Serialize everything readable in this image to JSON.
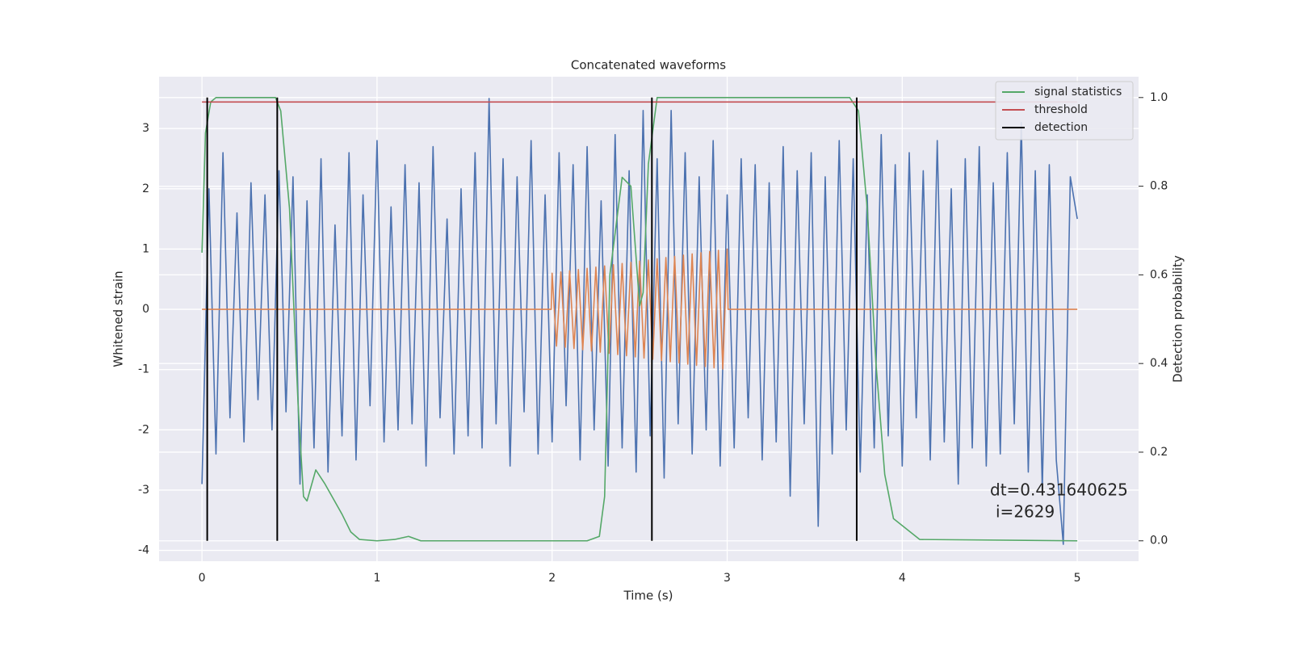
{
  "chart_data": {
    "type": "line",
    "title": "Concatenated waveforms",
    "xlabel": "Time (s)",
    "ylabel": "Whitened strain",
    "y2label": "Detection probability",
    "xlim": [
      -0.245,
      5.35
    ],
    "xticks": [
      0,
      1,
      2,
      3,
      4,
      5
    ],
    "ylim": [
      -4.18,
      3.86
    ],
    "yticks": [
      -4,
      -3,
      -2,
      -1,
      0,
      1,
      2,
      3
    ],
    "y2lim": [
      -0.046,
      1.047
    ],
    "y2ticks": [
      {
        "value": 0,
        "label": "0.0"
      },
      0.2,
      0.4,
      0.6,
      0.8,
      {
        "value": 1,
        "label": "1.0"
      }
    ],
    "grid": true,
    "legend": "upper right",
    "annotation": [
      "dt=0.431640625",
      "i=2629"
    ],
    "series": [
      {
        "color": "#4c72b0",
        "x": [
          0,
          0.04,
          0.08,
          0.12,
          0.16,
          0.2,
          0.24,
          0.28,
          0.32,
          0.36,
          0.4,
          0.44,
          0.48,
          0.52,
          0.56,
          0.6,
          0.64,
          0.68,
          0.72,
          0.76,
          0.8,
          0.84,
          0.88,
          0.92,
          0.96,
          1,
          1.04,
          1.08,
          1.12,
          1.16,
          1.2,
          1.24,
          1.28,
          1.32,
          1.36,
          1.4,
          1.44,
          1.48,
          1.52,
          1.56,
          1.6,
          1.64,
          1.68,
          1.72,
          1.76,
          1.8,
          1.84,
          1.88,
          1.92,
          1.96,
          2,
          2.04,
          2.08,
          2.12,
          2.16,
          2.2,
          2.24,
          2.28,
          2.32,
          2.36,
          2.4,
          2.44,
          2.48,
          2.52,
          2.56,
          2.6,
          2.64,
          2.68,
          2.72,
          2.76,
          2.8,
          2.84,
          2.88,
          2.92,
          2.96,
          3,
          3.04,
          3.08,
          3.12,
          3.16,
          3.2,
          3.24,
          3.28,
          3.32,
          3.36,
          3.4,
          3.44,
          3.48,
          3.52,
          3.56,
          3.6,
          3.64,
          3.68,
          3.72,
          3.76,
          3.8,
          3.84,
          3.88,
          3.92,
          3.96,
          4,
          4.04,
          4.08,
          4.12,
          4.16,
          4.2,
          4.24,
          4.28,
          4.32,
          4.36,
          4.4,
          4.44,
          4.48,
          4.52,
          4.56,
          4.6,
          4.64,
          4.68,
          4.72,
          4.76,
          4.8,
          4.84,
          4.88,
          4.92,
          4.96,
          5
        ],
        "values": [
          -2.9,
          2.0,
          -2.4,
          2.6,
          -1.8,
          1.6,
          -2.2,
          2.1,
          -1.5,
          1.9,
          -2.0,
          2.3,
          -1.7,
          2.2,
          -2.9,
          1.8,
          -2.3,
          2.5,
          -2.7,
          1.4,
          -2.1,
          2.6,
          -2.5,
          1.9,
          -1.6,
          2.8,
          -2.2,
          1.7,
          -2.0,
          2.4,
          -1.9,
          2.1,
          -2.6,
          2.7,
          -1.8,
          1.5,
          -2.4,
          2.0,
          -2.1,
          2.6,
          -2.3,
          3.5,
          -1.9,
          2.5,
          -2.6,
          2.2,
          -1.7,
          2.8,
          -2.4,
          1.9,
          -2.2,
          2.6,
          -1.6,
          2.4,
          -2.5,
          2.7,
          -2.0,
          1.8,
          -2.6,
          2.9,
          -2.3,
          2.3,
          -2.7,
          3.3,
          -2.1,
          2.5,
          -2.8,
          3.3,
          -1.9,
          2.6,
          -2.4,
          2.2,
          -2.0,
          2.8,
          -2.6,
          1.9,
          -2.3,
          2.5,
          -1.8,
          2.4,
          -2.5,
          2.1,
          -2.2,
          2.7,
          -3.1,
          2.3,
          -1.9,
          2.6,
          -3.6,
          2.2,
          -2.4,
          2.8,
          -2.0,
          2.5,
          -2.7,
          1.9,
          -2.3,
          2.9,
          -2.1,
          2.4,
          -2.6,
          2.6,
          -1.8,
          2.3,
          -2.5,
          2.8,
          -2.2,
          2.0,
          -2.9,
          2.5,
          -2.3,
          2.7,
          -2.6,
          2.1,
          -2.4,
          2.6,
          -1.9,
          3.1,
          -2.7,
          2.3,
          -3.0,
          2.4,
          -2.5,
          -3.9,
          2.2,
          1.5
        ]
      },
      {
        "color": "#dd8452",
        "x": [
          0,
          1.995,
          2,
          2.025,
          2.05,
          2.075,
          2.1,
          2.125,
          2.15,
          2.175,
          2.2,
          2.225,
          2.25,
          2.275,
          2.3,
          2.325,
          2.35,
          2.375,
          2.4,
          2.425,
          2.45,
          2.475,
          2.5,
          2.525,
          2.55,
          2.575,
          2.6,
          2.625,
          2.65,
          2.675,
          2.7,
          2.725,
          2.75,
          2.775,
          2.8,
          2.825,
          2.85,
          2.875,
          2.9,
          2.925,
          2.95,
          2.975,
          3,
          3.005,
          5
        ],
        "values": [
          0,
          0,
          0.6,
          -0.61,
          0.62,
          -0.63,
          0.64,
          -0.65,
          0.66,
          -0.67,
          0.68,
          -0.69,
          0.7,
          -0.71,
          0.72,
          -0.73,
          0.74,
          -0.75,
          0.76,
          -0.77,
          0.78,
          -0.79,
          0.8,
          -0.81,
          0.82,
          -0.83,
          0.84,
          -0.85,
          0.86,
          -0.87,
          0.88,
          -0.89,
          0.9,
          -0.91,
          0.92,
          -0.93,
          0.94,
          -0.95,
          0.96,
          -0.97,
          0.98,
          -0.99,
          1.0,
          0,
          0
        ]
      },
      {
        "name": "signal statistics",
        "color": "#55a868",
        "axis": "y2",
        "x": [
          0,
          0.02,
          0.05,
          0.08,
          0.42,
          0.45,
          0.5,
          0.55,
          0.58,
          0.6,
          0.65,
          0.7,
          0.8,
          0.85,
          0.9,
          1.0,
          1.1,
          1.18,
          1.25,
          1.4,
          2.2,
          2.27,
          2.3,
          2.33,
          2.4,
          2.45,
          2.5,
          2.52,
          2.55,
          2.6,
          2.7,
          3.7,
          3.75,
          3.8,
          3.85,
          3.9,
          3.95,
          4.1,
          5.0
        ],
        "values": [
          0.65,
          0.92,
          0.99,
          1.0,
          1.0,
          0.97,
          0.75,
          0.3,
          0.1,
          0.09,
          0.16,
          0.13,
          0.06,
          0.02,
          0.003,
          0,
          0.003,
          0.01,
          0,
          0,
          0,
          0.01,
          0.1,
          0.6,
          0.82,
          0.8,
          0.53,
          0.56,
          0.85,
          1.0,
          1.0,
          1.0,
          0.97,
          0.75,
          0.4,
          0.15,
          0.05,
          0.003,
          0
        ]
      },
      {
        "name": "threshold",
        "color": "#c44e52",
        "axis": "y2",
        "x": [
          0,
          5
        ],
        "values": [
          0.99,
          0.99
        ]
      },
      {
        "name": "detection",
        "color": "#000000",
        "axis": "y2",
        "type": "vline",
        "x": [
          0.03,
          0.43,
          2.57,
          3.74
        ],
        "ymin": 0,
        "ymax": 1
      }
    ]
  }
}
